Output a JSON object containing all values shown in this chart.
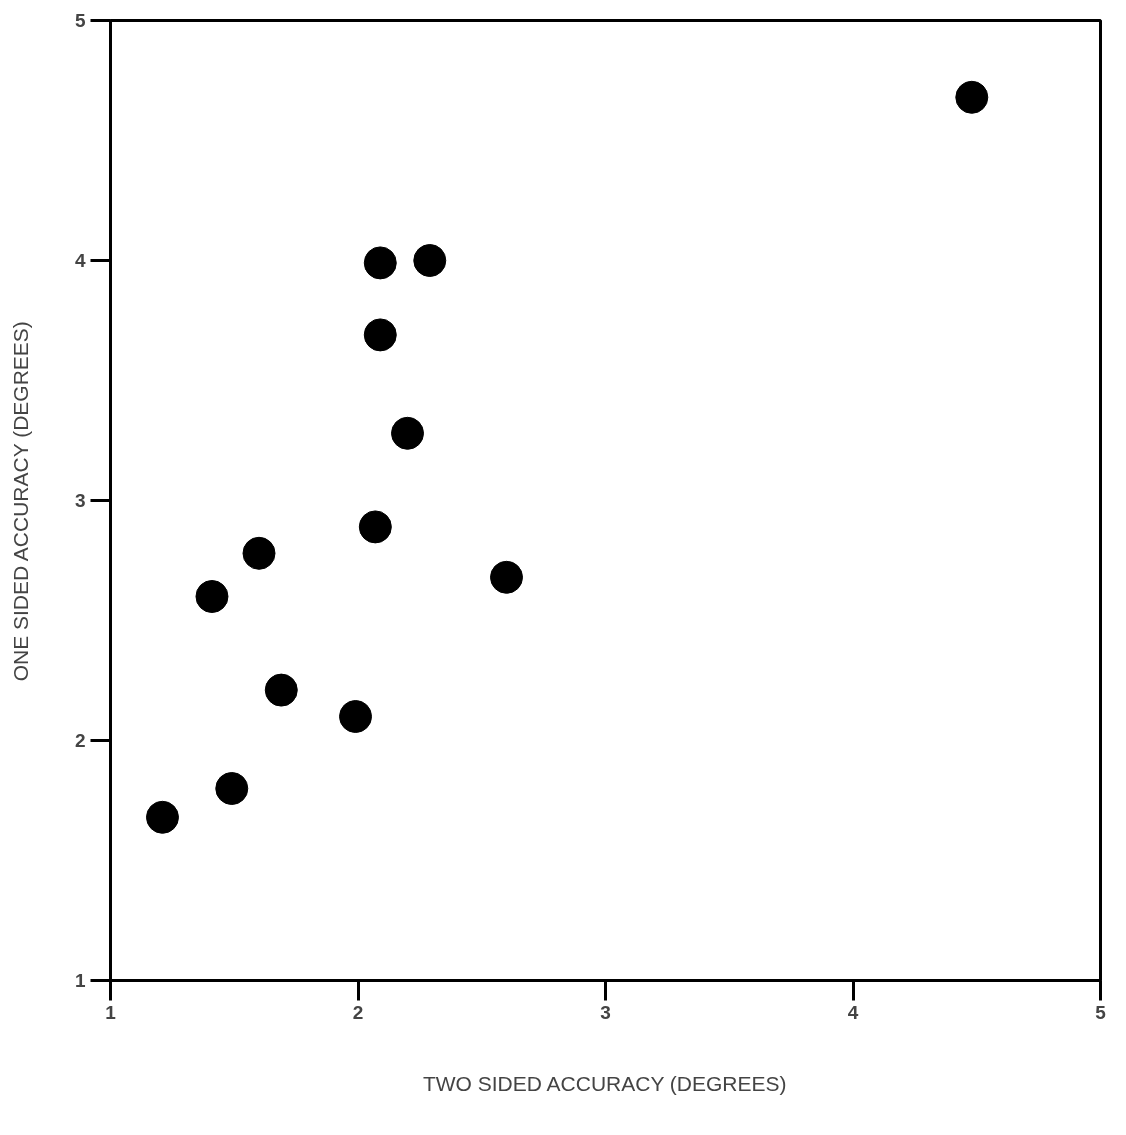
{
  "chart_data": {
    "type": "scatter",
    "xlabel": "TWO SIDED ACCURACY (DEGREES)",
    "ylabel": "ONE SIDED ACCURACY (DEGREES)",
    "x": [
      1.21,
      1.49,
      1.41,
      1.6,
      1.69,
      1.99,
      2.07,
      2.09,
      2.09,
      2.29,
      2.2,
      2.6,
      4.48
    ],
    "series": [
      {
        "color": "#000000",
        "values": [
          1.68,
          1.8,
          2.6,
          2.78,
          2.21,
          2.1,
          2.89,
          3.69,
          3.99,
          4.0,
          3.28,
          2.68,
          4.68
        ]
      }
    ],
    "xlim": [
      1,
      5
    ],
    "ylim": [
      1,
      5
    ],
    "xticks": [
      1,
      2,
      3,
      4,
      5
    ],
    "yticks": [
      1,
      2,
      3,
      4,
      5
    ],
    "grid": false,
    "marker": "circle"
  }
}
